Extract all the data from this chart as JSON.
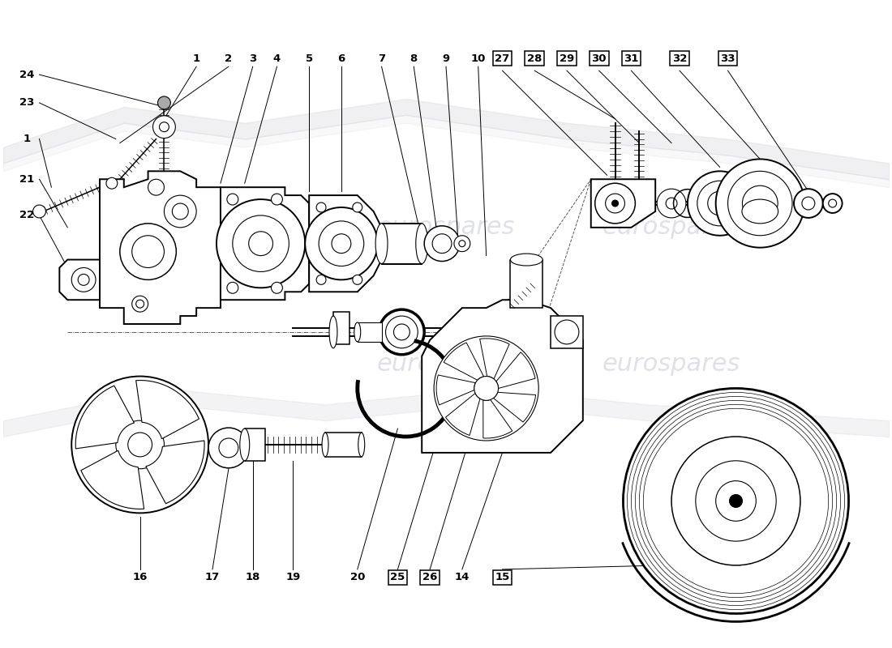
{
  "background_color": "#ffffff",
  "watermark": "eurospares",
  "fig_width": 11.0,
  "fig_height": 8.0,
  "dpi": 100,
  "watermark_color": "#ccccdd",
  "watermark_fontsize": 22,
  "label_fontsize": 9.5,
  "line_color": "#000000"
}
